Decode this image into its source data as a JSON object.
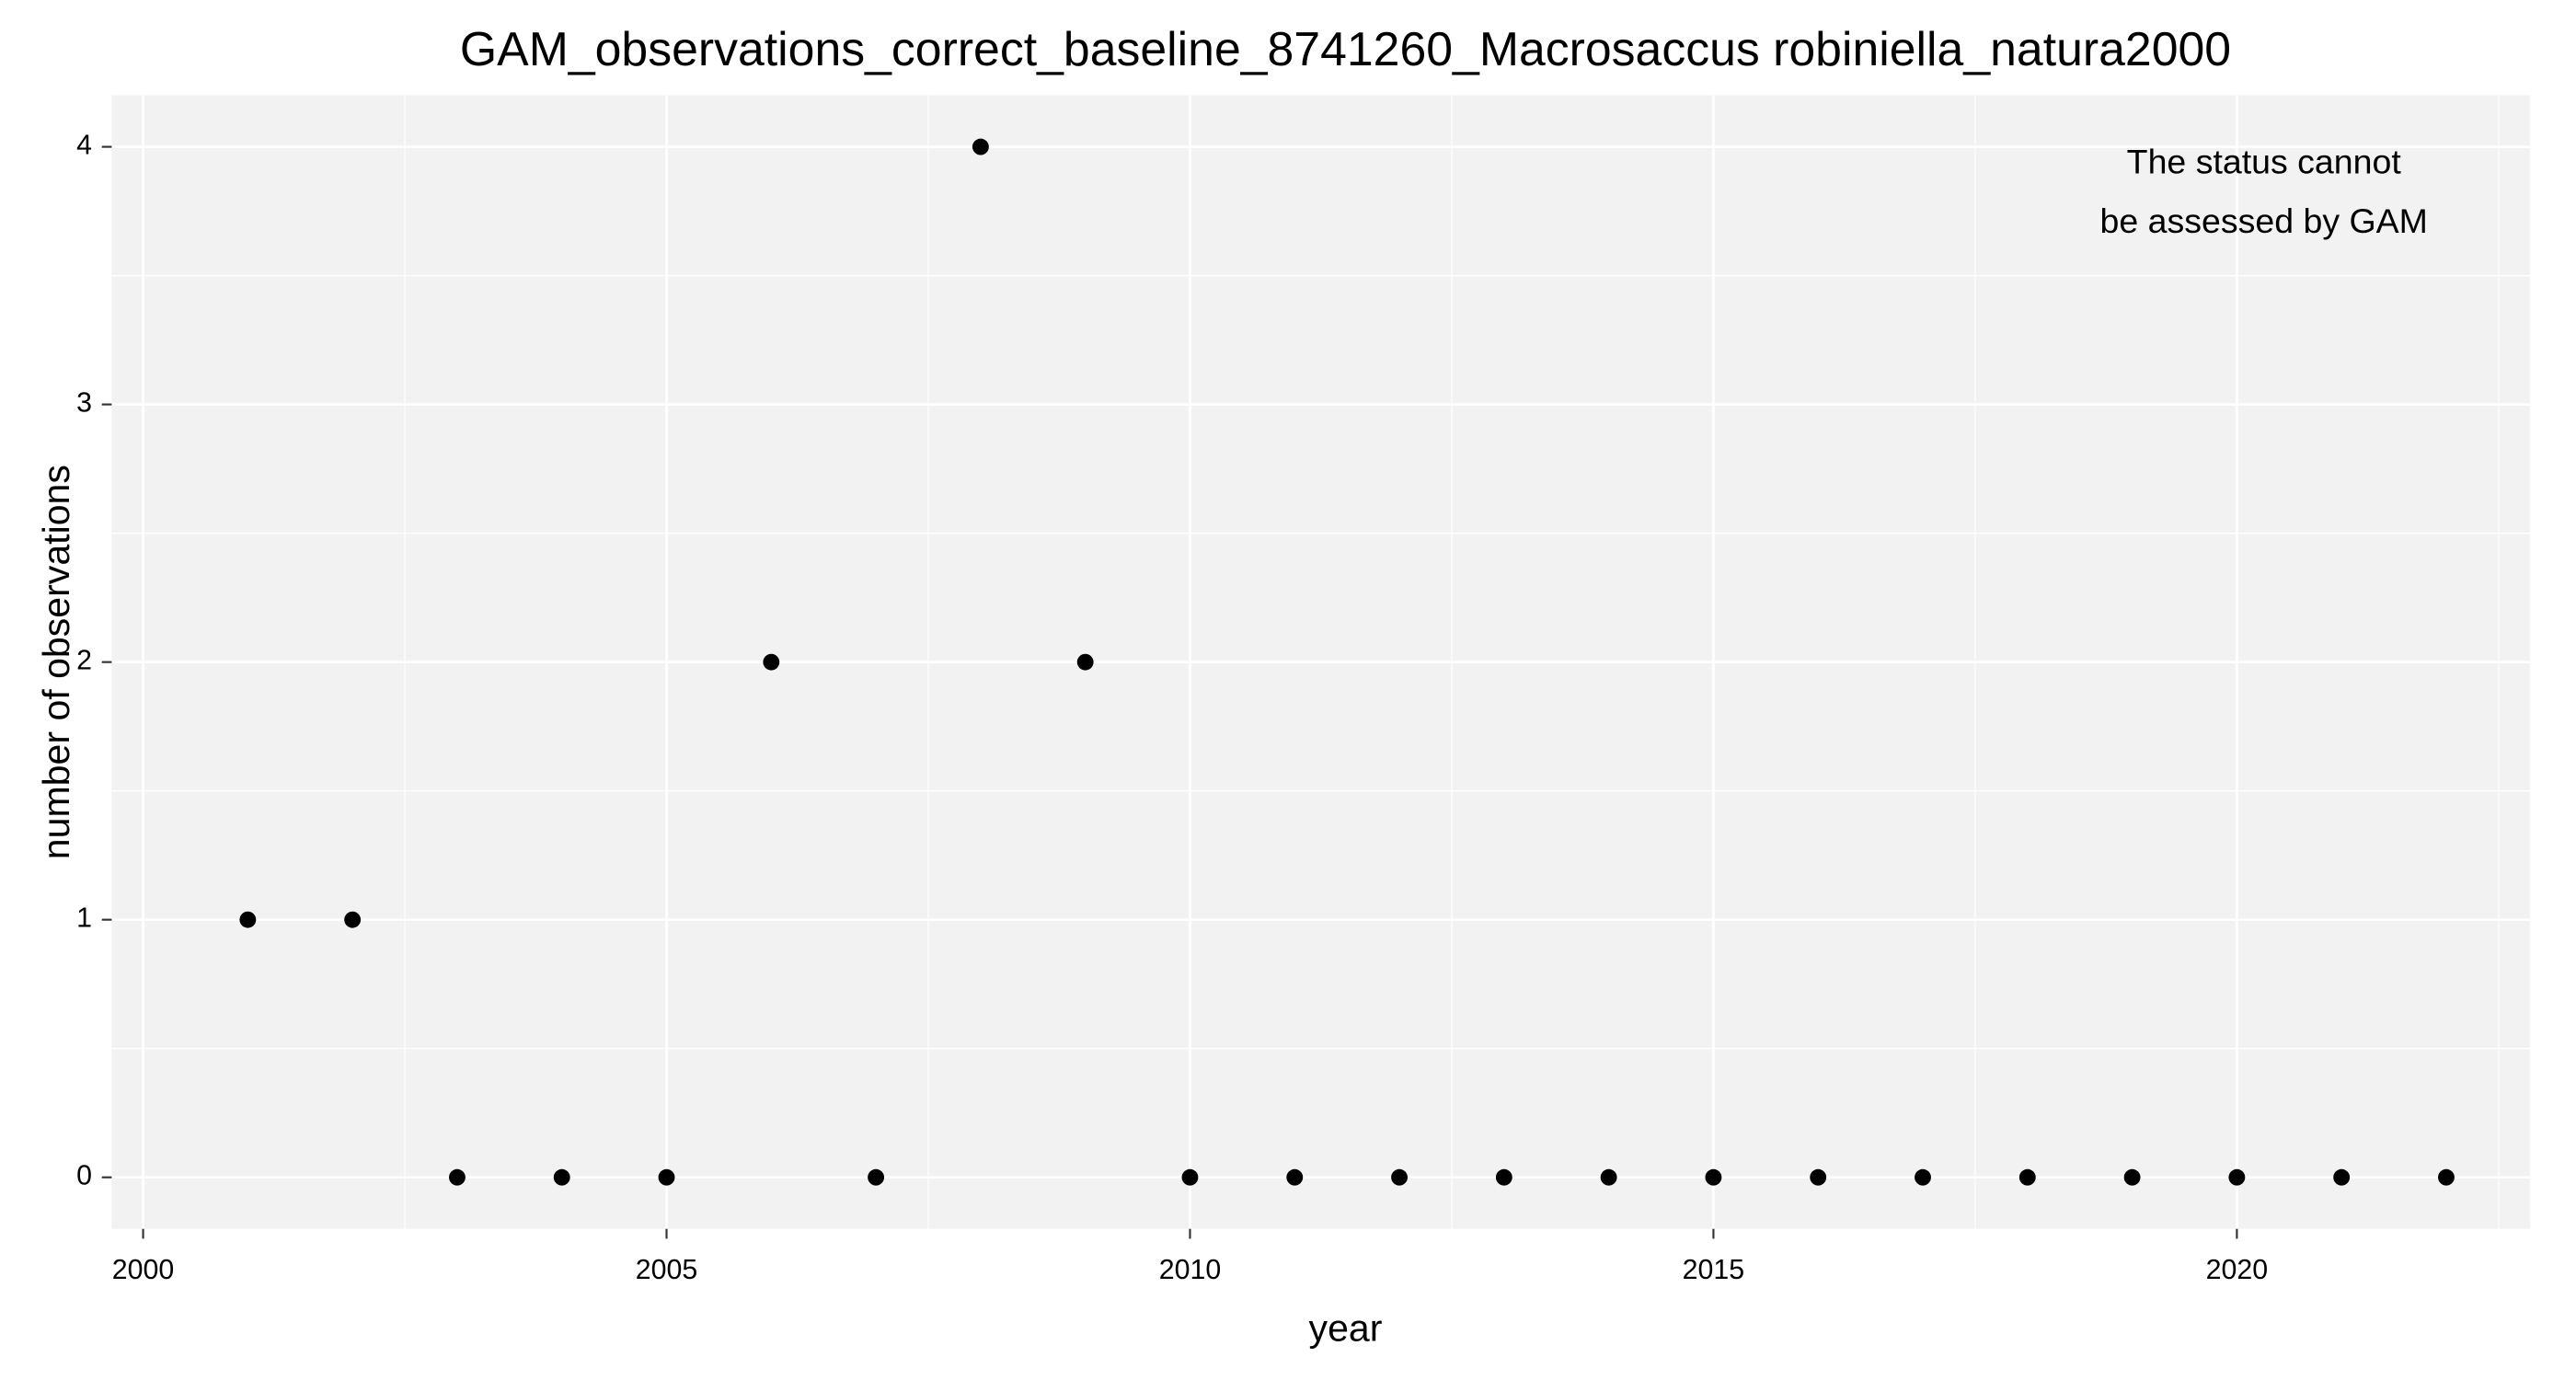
{
  "chart_data": {
    "type": "scatter",
    "title": "GAM_observations_correct_baseline_8741260_Macrosaccus robiniella_natura2000",
    "x_label": "year",
    "y_label": "number of observations",
    "annotation": [
      "The status cannot",
      "be assessed by GAM"
    ],
    "annotation_color": "#ff0000",
    "x": [
      2001,
      2002,
      2003,
      2004,
      2005,
      2006,
      2007,
      2008,
      2009,
      2010,
      2011,
      2012,
      2013,
      2014,
      2015,
      2016,
      2017,
      2018,
      2019,
      2020,
      2021,
      2022
    ],
    "values": [
      1,
      1,
      0,
      0,
      0,
      2,
      0,
      4,
      2,
      0,
      0,
      0,
      0,
      0,
      0,
      0,
      0,
      0,
      0,
      0,
      0,
      0
    ],
    "color": "#000000",
    "xlim": [
      1999.7,
      2022.8
    ],
    "xticks": [
      2000,
      2005,
      2010,
      2015,
      2020
    ],
    "ylim": [
      -0.2,
      4.2
    ],
    "yticks": [
      0,
      1,
      2,
      3,
      4
    ],
    "grid": true
  }
}
